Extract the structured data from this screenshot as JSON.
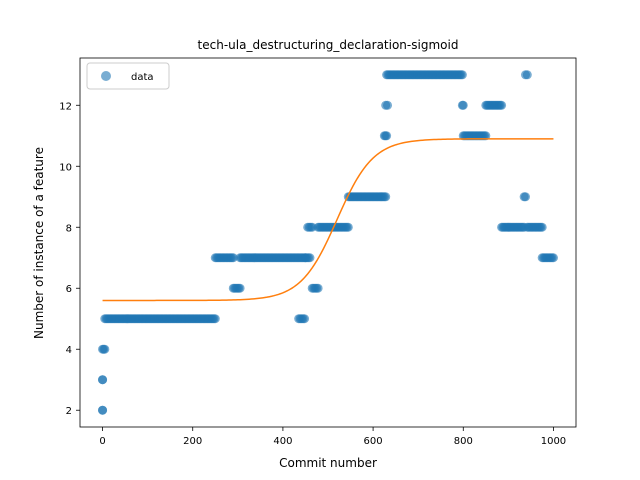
{
  "chart_data": {
    "type": "scatter",
    "title": "tech-ula_destructuring_declaration-sigmoid",
    "xlabel": "Commit number",
    "ylabel": "Number of instance of a feature",
    "xlim": [
      -50,
      1050
    ],
    "ylim": [
      1.45,
      13.55
    ],
    "x_ticks": [
      0,
      200,
      400,
      600,
      800,
      1000
    ],
    "y_ticks": [
      2,
      4,
      6,
      8,
      10,
      12
    ],
    "x_tick_labels": [
      "0",
      "200",
      "400",
      "600",
      "800",
      "1000"
    ],
    "y_tick_labels": [
      "2",
      "4",
      "6",
      "8",
      "10",
      "12"
    ],
    "grid": false,
    "legend": {
      "position": "top-left",
      "entries": [
        "data"
      ]
    },
    "colors": {
      "scatter": "#1f77b4",
      "fit": "#ff7f0e"
    },
    "series": [
      {
        "name": "data",
        "kind": "points",
        "segments": [
          {
            "x_start": 0,
            "x_end": 0,
            "y": 2
          },
          {
            "x_start": 0,
            "x_end": 0,
            "y": 3
          },
          {
            "x_start": 0,
            "x_end": 5,
            "y": 4
          },
          {
            "x_start": 5,
            "x_end": 250,
            "y": 5
          },
          {
            "x_start": 250,
            "x_end": 290,
            "y": 7
          },
          {
            "x_start": 290,
            "x_end": 305,
            "y": 6
          },
          {
            "x_start": 305,
            "x_end": 450,
            "y": 7
          },
          {
            "x_start": 435,
            "x_end": 448,
            "y": 5
          },
          {
            "x_start": 450,
            "x_end": 460,
            "y": 7
          },
          {
            "x_start": 455,
            "x_end": 465,
            "y": 8
          },
          {
            "x_start": 465,
            "x_end": 478,
            "y": 6
          },
          {
            "x_start": 478,
            "x_end": 545,
            "y": 8
          },
          {
            "x_start": 545,
            "x_end": 628,
            "y": 9
          },
          {
            "x_start": 625,
            "x_end": 630,
            "y": 11
          },
          {
            "x_start": 628,
            "x_end": 632,
            "y": 12
          },
          {
            "x_start": 630,
            "x_end": 798,
            "y": 13
          },
          {
            "x_start": 798,
            "x_end": 800,
            "y": 12
          },
          {
            "x_start": 800,
            "x_end": 850,
            "y": 11
          },
          {
            "x_start": 850,
            "x_end": 885,
            "y": 12
          },
          {
            "x_start": 885,
            "x_end": 935,
            "y": 8
          },
          {
            "x_start": 935,
            "x_end": 938,
            "y": 9
          },
          {
            "x_start": 938,
            "x_end": 942,
            "y": 13
          },
          {
            "x_start": 942,
            "x_end": 975,
            "y": 8
          },
          {
            "x_start": 975,
            "x_end": 1000,
            "y": 7
          }
        ]
      },
      {
        "name": "",
        "kind": "sigmoid-fit",
        "x_range": [
          0,
          1000
        ],
        "lower": 5.6,
        "upper": 10.9,
        "midpoint": 520,
        "slope": 0.025
      }
    ]
  }
}
